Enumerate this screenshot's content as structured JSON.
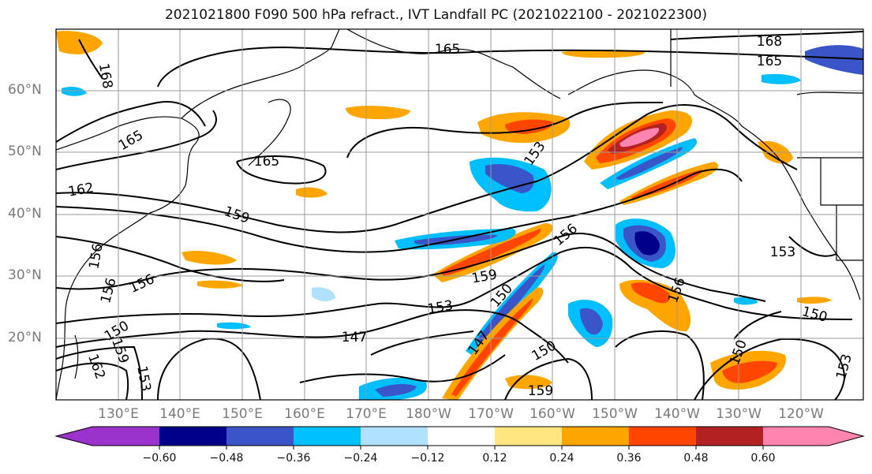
{
  "title": "2021021800 F090 500 hPa refract., IVT Landfall PC (2021022100 - 2021022300)",
  "map": {
    "lat_labels": [
      "60°N",
      "50°N",
      "40°N",
      "30°N",
      "20°N"
    ],
    "lon_labels": [
      "130°E",
      "140°E",
      "150°E",
      "160°E",
      "170°E",
      "180°W",
      "170°W",
      "160°W",
      "150°W",
      "140°W",
      "130°W",
      "120°W"
    ],
    "contour_labels": [
      "168",
      "165",
      "165",
      "168",
      "165",
      "165",
      "162",
      "159",
      "156",
      "156",
      "156",
      "153",
      "159",
      "150",
      "153",
      "147",
      "147",
      "150",
      "156",
      "156",
      "159",
      "153",
      "150",
      "150",
      "153",
      "150",
      "159",
      "162",
      "153"
    ],
    "colors": {
      "land_line": "#000000",
      "grid": "#9a9a9a"
    }
  },
  "colorbar": {
    "ticks": [
      "−0.60",
      "−0.48",
      "−0.36",
      "−0.24",
      "−0.12",
      "0.12",
      "0.24",
      "0.36",
      "0.48",
      "0.60"
    ],
    "colors": [
      "#9933cc",
      "#00008b",
      "#3a55c8",
      "#00bfff",
      "#b0e2ff",
      "#ffffff",
      "#ffe680",
      "#ffa500",
      "#ff4500",
      "#b22222",
      "#ff85b0"
    ]
  }
}
